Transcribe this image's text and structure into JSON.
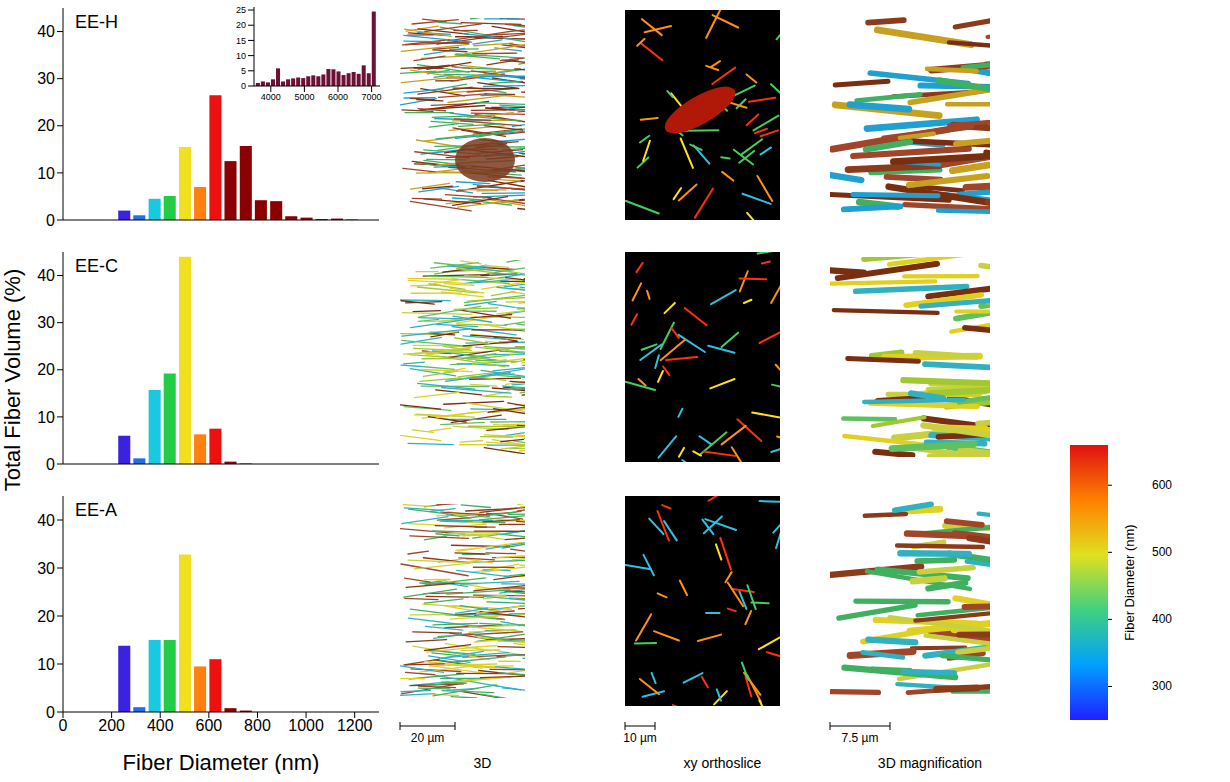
{
  "figure": {
    "ylabel": "Total Fiber Volume (%)"
  },
  "panels": {
    "columns": [
      "3D",
      "xy orthoslice",
      "3D magnification"
    ],
    "scale_bars": [
      "20 µm",
      "10 µm",
      "7.5 µm"
    ]
  },
  "chart_data": [
    {
      "type": "bar",
      "title": "EE-H",
      "x": [
        250,
        312,
        375,
        437,
        500,
        562,
        625,
        687,
        750,
        812,
        875,
        937,
        1000,
        1062,
        1125,
        1187
      ],
      "values": [
        2,
        1,
        4.5,
        5.1,
        15.5,
        7,
        26.5,
        12.5,
        15.7,
        4.2,
        4,
        0.8,
        0.5,
        0.2,
        0.3,
        0.1
      ],
      "colors": [
        "#3b22e0",
        "#1e6fe8",
        "#19c9e0",
        "#22cc44",
        "#f0e020",
        "#ff8010",
        "#ee1010",
        "#8b0000",
        "#8b0000",
        "#8b0000",
        "#8b0000",
        "#8b0000",
        "#8b0000",
        "#8b0000",
        "#8b0000",
        "#8b0000"
      ],
      "xlim": [
        0,
        1300
      ],
      "xticks": [
        0,
        200,
        400,
        600,
        800,
        1000,
        1200
      ],
      "ylim": [
        0,
        45
      ],
      "yticks": [
        0,
        10,
        20,
        30,
        40
      ],
      "tick_labels": "y",
      "inset": {
        "type": "bar",
        "x": [
          3600,
          3750,
          3900,
          4050,
          4200,
          4350,
          4500,
          4650,
          4800,
          4950,
          5100,
          5250,
          5400,
          5550,
          5700,
          5850,
          6000,
          6150,
          6300,
          6450,
          6600,
          6750,
          6900,
          7050
        ],
        "values": [
          1,
          1.5,
          1.2,
          2.2,
          5.8,
          1.5,
          2.2,
          2.5,
          2.8,
          2.6,
          3.2,
          3.5,
          3.2,
          3.8,
          5.6,
          5.5,
          4.8,
          3.6,
          4.2,
          4.6,
          4,
          6.8,
          4.2,
          24.5
        ],
        "color": "#6d1038",
        "xlim": [
          3500,
          7250
        ],
        "xticks": [
          4000,
          5000,
          6000,
          7000
        ],
        "ylim": [
          0,
          26
        ],
        "yticks": [
          0,
          5,
          10,
          15,
          20,
          25
        ]
      }
    },
    {
      "type": "bar",
      "title": "EE-C",
      "x": [
        250,
        312,
        375,
        437,
        500,
        562,
        625,
        687,
        750
      ],
      "values": [
        6,
        1.2,
        15.7,
        19.2,
        44,
        6.3,
        7.5,
        0.5,
        0.1
      ],
      "colors": [
        "#3b22e0",
        "#1e6fe8",
        "#19c9e0",
        "#22cc44",
        "#f0e020",
        "#ff8010",
        "#ee1010",
        "#8b0000",
        "#8b0000"
      ],
      "xlim": [
        0,
        1300
      ],
      "xticks": [
        0,
        200,
        400,
        600,
        800,
        1000,
        1200
      ],
      "ylim": [
        0,
        45
      ],
      "yticks": [
        0,
        10,
        20,
        30,
        40
      ],
      "tick_labels": "y"
    },
    {
      "type": "bar",
      "title": "EE-A",
      "xlabel": "Fiber Diameter (nm)",
      "x": [
        250,
        312,
        375,
        437,
        500,
        562,
        625,
        687,
        750
      ],
      "values": [
        13.8,
        1,
        15,
        15,
        32.8,
        9.5,
        11,
        0.8,
        0.3
      ],
      "colors": [
        "#3b22e0",
        "#1e6fe8",
        "#19c9e0",
        "#22cc44",
        "#f0e020",
        "#ff8010",
        "#ee1010",
        "#8b0000",
        "#8b0000"
      ],
      "xlim": [
        0,
        1300
      ],
      "xticks": [
        0,
        200,
        400,
        600,
        800,
        1000,
        1200
      ],
      "ylim": [
        0,
        45
      ],
      "yticks": [
        0,
        10,
        20,
        30,
        40
      ]
    },
    {
      "type": "colorbar",
      "title": "Fiber Diameter (nm)",
      "ylim": [
        250,
        660
      ],
      "yticks": [
        300,
        400,
        500,
        600
      ]
    }
  ]
}
